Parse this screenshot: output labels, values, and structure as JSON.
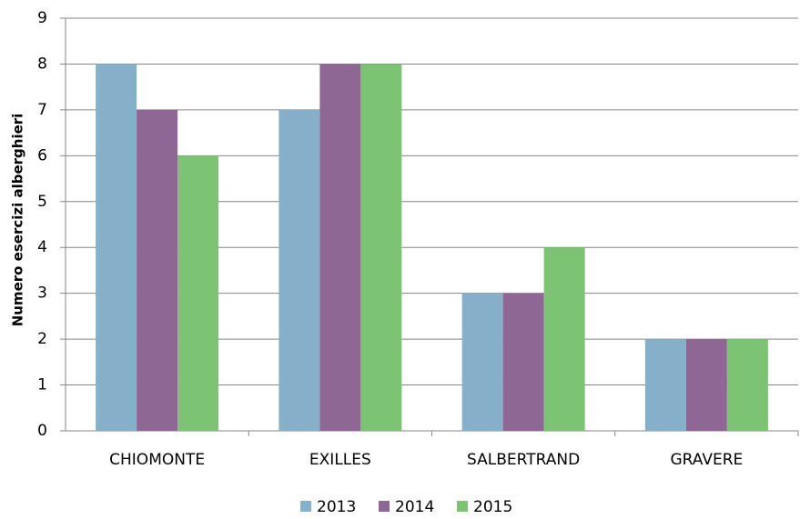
{
  "chart_data": {
    "type": "bar",
    "y_label": "Numero esercizi alberghieri",
    "categories": [
      "CHIOMONTE",
      "EXILLES",
      "SALBERTRAND",
      "GRAVERE"
    ],
    "series": [
      {
        "name": "2013",
        "color": "#86b0c9",
        "values": [
          8,
          7,
          3,
          2
        ]
      },
      {
        "name": "2014",
        "color": "#8f6795",
        "values": [
          7,
          8,
          3,
          2
        ]
      },
      {
        "name": "2015",
        "color": "#7cc474",
        "values": [
          6,
          8,
          4,
          2
        ]
      }
    ],
    "ylim": [
      0,
      9
    ],
    "yticks": [
      0,
      1,
      2,
      3,
      4,
      5,
      6,
      7,
      8,
      9
    ],
    "grid": true,
    "legend": "bottom"
  }
}
